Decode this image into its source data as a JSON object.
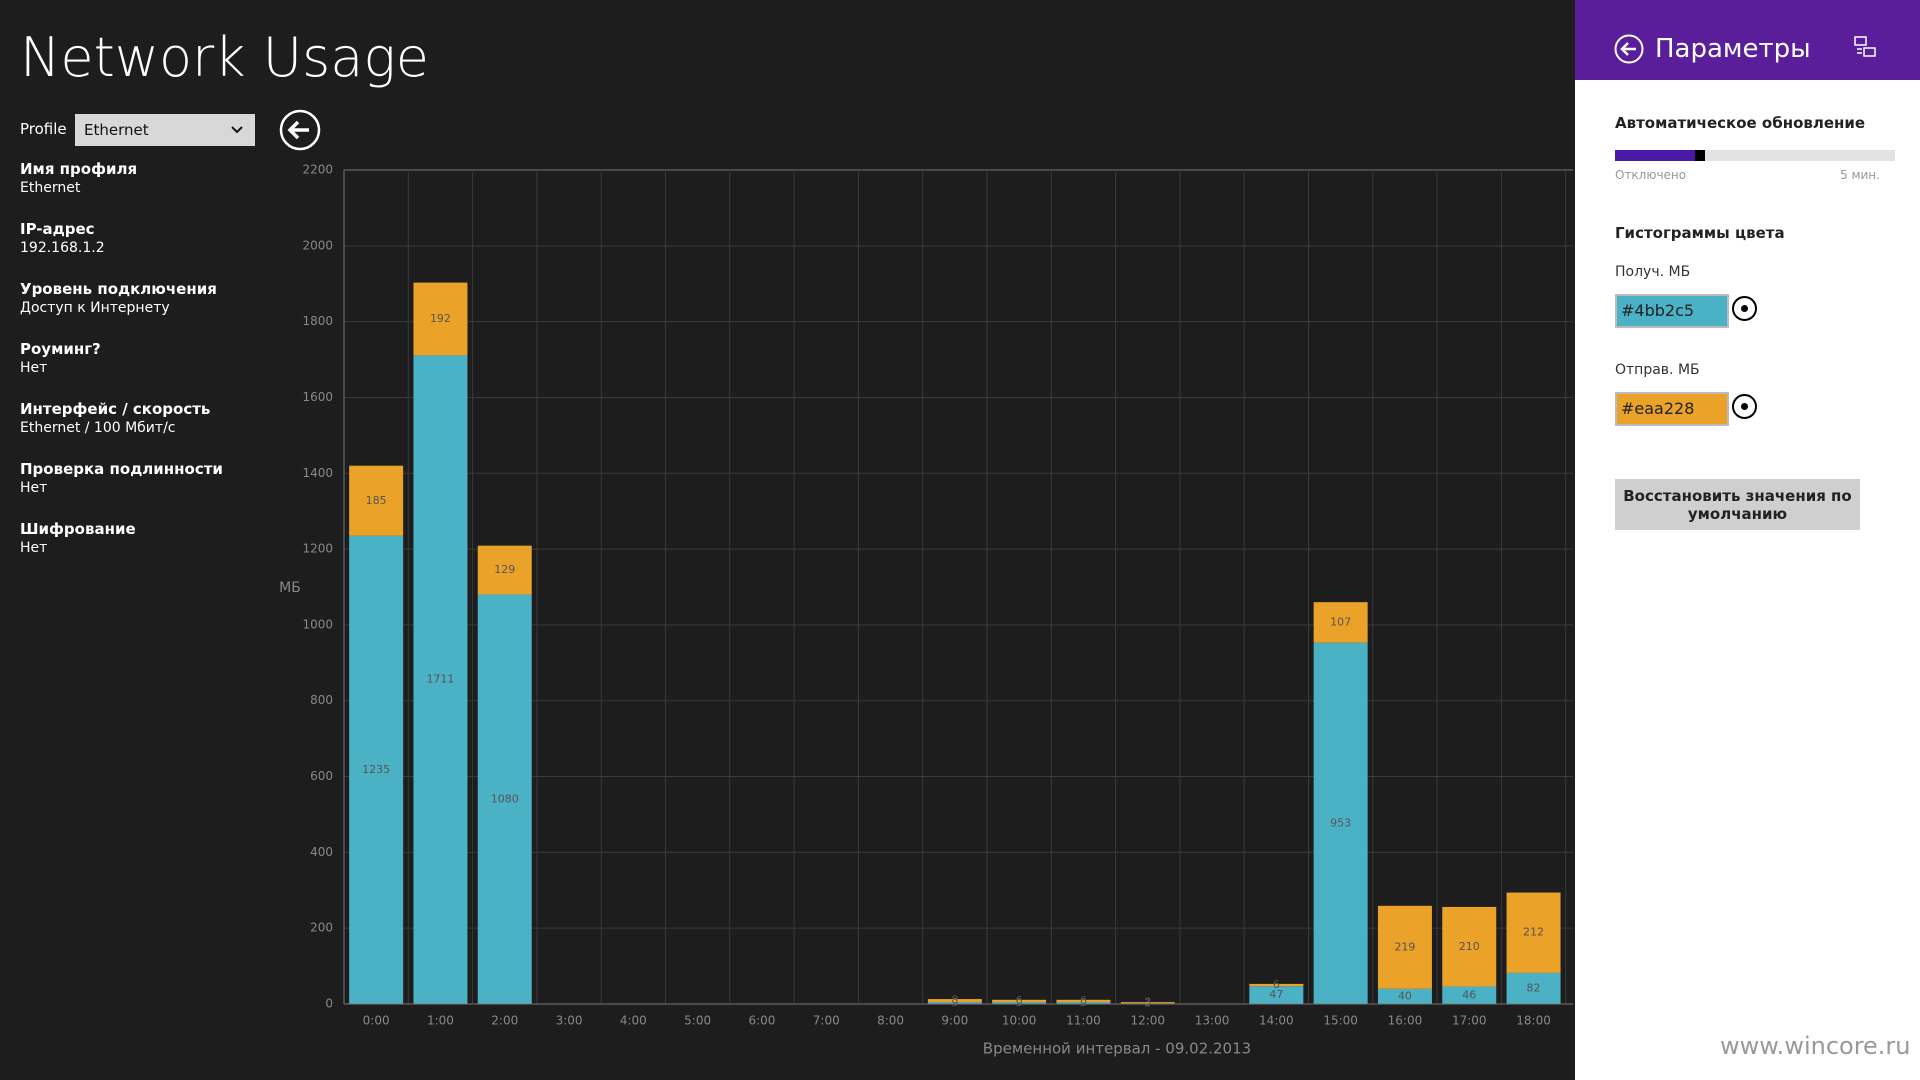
{
  "header": {
    "title": "Network Usage",
    "profile_label": "Profile",
    "profile_value": "Ethernet"
  },
  "info": [
    {
      "label": "Имя профиля",
      "value": "Ethernet"
    },
    {
      "label": "IP-адрес",
      "value": "192.168.1.2"
    },
    {
      "label": "Уровень подключения",
      "value": "Доступ к Интернету"
    },
    {
      "label": "Роуминг?",
      "value": "Нет"
    },
    {
      "label": "Интерфейс / скорость",
      "value": "Ethernet / 100 Мбит/с"
    },
    {
      "label": "Проверка подлинности",
      "value": "Нет"
    },
    {
      "label": "Шифрование",
      "value": "Нет"
    }
  ],
  "chart_data": {
    "type": "bar",
    "stacked": true,
    "grid": true,
    "ylabel": "МБ",
    "xlabel": "Временной интервал - 09.02.2013",
    "categories": [
      "0:00",
      "1:00",
      "2:00",
      "3:00",
      "4:00",
      "5:00",
      "6:00",
      "7:00",
      "8:00",
      "9:00",
      "10:00",
      "11:00",
      "12:00",
      "13:00",
      "14:00",
      "15:00",
      "16:00",
      "17:00",
      "18:00"
    ],
    "series": [
      {
        "name": "Получ. МБ",
        "color": "#4bb2c5",
        "values": [
          1235,
          1711,
          1080,
          0,
          0,
          0,
          0,
          0,
          0,
          5,
          5,
          5,
          2,
          0,
          47,
          953,
          40,
          46,
          82
        ]
      },
      {
        "name": "Отправ. МБ",
        "color": "#eaa228",
        "values": [
          185,
          192,
          129,
          0,
          0,
          0,
          0,
          0,
          0,
          8,
          6,
          6,
          3,
          0,
          6,
          107,
          219,
          210,
          212
        ]
      }
    ],
    "ylim": [
      0,
      2200
    ],
    "yticks": [
      0,
      200,
      400,
      600,
      800,
      1000,
      1200,
      1400,
      1600,
      1800,
      2000,
      2200
    ]
  },
  "settings": {
    "title": "Параметры",
    "auto_update": "Автоматическое обновление",
    "slider_min": "Отключено",
    "slider_max": "5 мин.",
    "colors_heading": "Гистограммы цвета",
    "reset_button": "Восстановить значения по умолчанию"
  },
  "watermark": "www.wincore.ru"
}
